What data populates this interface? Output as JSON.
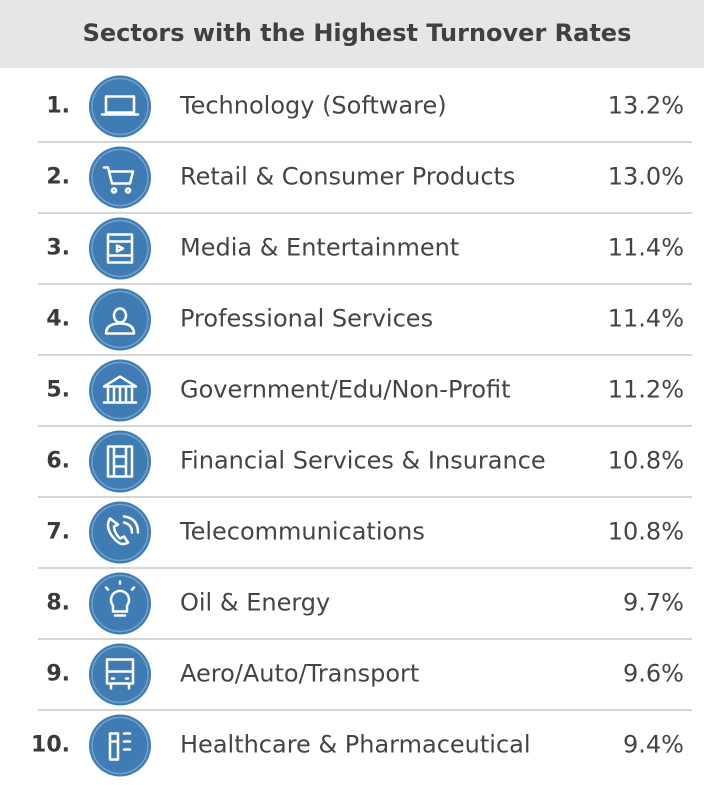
{
  "header": {
    "title": "Sectors with the Highest Turnover Rates"
  },
  "table": {
    "rows": [
      [
        "1.",
        "Technology (Software)",
        "13.2%"
      ],
      [
        "2.",
        "Retail & Consumer Products",
        "13.0%"
      ],
      [
        "3.",
        "Media & Entertainment",
        "11.4%"
      ],
      [
        "4.",
        "Professional Services",
        "11.4%"
      ],
      [
        "5.",
        "Government/Edu/Non-Profit",
        "11.2%"
      ],
      [
        "6.",
        "Financial Services & Insurance",
        "10.8%"
      ],
      [
        "7.",
        "Telecommunications",
        "10.8%"
      ],
      [
        "8.",
        "Oil & Energy",
        "9.7%"
      ],
      [
        "9.",
        "Aero/Auto/Transport",
        "9.6%"
      ],
      [
        "10.",
        "Healthcare & Pharmaceutical",
        "9.4%"
      ]
    ]
  }
}
